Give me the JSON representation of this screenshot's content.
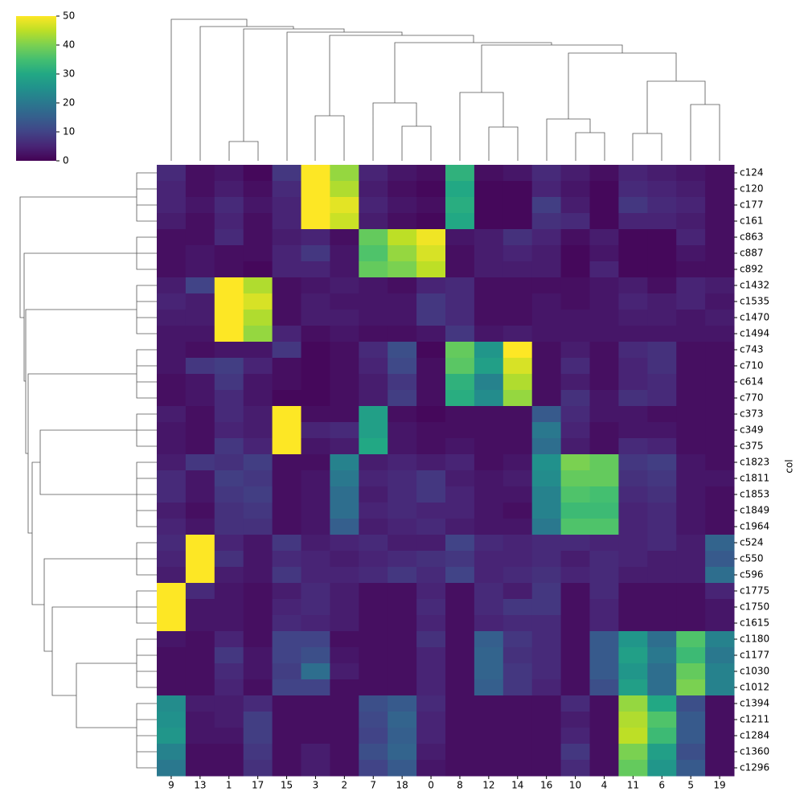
{
  "chart_data": {
    "type": "heatmap",
    "colormap": "viridis",
    "categories": [
      "9",
      "13",
      "1",
      "17",
      "15",
      "3",
      "2",
      "7",
      "18",
      "0",
      "8",
      "12",
      "14",
      "16",
      "10",
      "4",
      "11",
      "6",
      "5",
      "19"
    ],
    "y_categories": [
      "c124",
      "c120",
      "c177",
      "c161",
      "c863",
      "c887",
      "c892",
      "c1432",
      "c1535",
      "c1470",
      "c1494",
      "c743",
      "c710",
      "c614",
      "c770",
      "c373",
      "c349",
      "c375",
      "c1823",
      "c1811",
      "c1853",
      "c1849",
      "c1964",
      "c524",
      "c550",
      "c596",
      "c1775",
      "c1750",
      "c1615",
      "c1180",
      "c1177",
      "c1030",
      "c1012",
      "c1394",
      "c1211",
      "c1284",
      "c1360",
      "c1296"
    ],
    "ylabel": "col",
    "zlim": [
      0,
      50
    ],
    "colorbar_ticks": [
      0,
      10,
      20,
      30,
      40,
      50
    ],
    "values": [
      [
        6,
        2,
        3,
        1,
        8,
        50,
        42,
        5,
        3,
        2,
        32,
        2,
        3,
        6,
        4,
        2,
        5,
        4,
        3,
        2
      ],
      [
        5,
        2,
        4,
        2,
        6,
        50,
        44,
        4,
        2,
        1,
        30,
        1,
        1,
        5,
        3,
        1,
        6,
        5,
        4,
        2
      ],
      [
        5,
        3,
        6,
        3,
        5,
        50,
        48,
        5,
        3,
        2,
        31,
        1,
        1,
        9,
        4,
        1,
        8,
        6,
        5,
        2
      ],
      [
        4,
        2,
        5,
        2,
        5,
        50,
        46,
        4,
        2,
        1,
        30,
        1,
        1,
        7,
        6,
        1,
        5,
        5,
        4,
        2
      ],
      [
        2,
        2,
        6,
        2,
        4,
        5,
        2,
        38,
        45,
        49,
        3,
        4,
        7,
        5,
        2,
        4,
        1,
        1,
        5,
        2
      ],
      [
        2,
        3,
        2,
        2,
        5,
        8,
        3,
        36,
        42,
        47,
        2,
        4,
        5,
        4,
        1,
        3,
        1,
        1,
        3,
        2
      ],
      [
        2,
        3,
        2,
        1,
        5,
        5,
        3,
        38,
        40,
        45,
        2,
        4,
        4,
        4,
        1,
        5,
        1,
        1,
        2,
        2
      ],
      [
        4,
        10,
        50,
        44,
        2,
        3,
        4,
        3,
        2,
        5,
        6,
        2,
        2,
        2,
        2,
        3,
        4,
        2,
        5,
        4
      ],
      [
        5,
        4,
        50,
        47,
        2,
        4,
        3,
        3,
        3,
        8,
        6,
        2,
        2,
        3,
        2,
        3,
        5,
        4,
        5,
        3
      ],
      [
        4,
        4,
        50,
        44,
        2,
        4,
        4,
        3,
        3,
        8,
        6,
        2,
        2,
        3,
        3,
        3,
        4,
        4,
        3,
        4
      ],
      [
        3,
        3,
        50,
        42,
        5,
        2,
        3,
        2,
        2,
        3,
        8,
        3,
        4,
        3,
        3,
        3,
        3,
        3,
        3,
        3
      ],
      [
        3,
        2,
        3,
        3,
        8,
        1,
        2,
        6,
        12,
        1,
        38,
        26,
        50,
        2,
        4,
        2,
        6,
        7,
        2,
        2
      ],
      [
        3,
        8,
        9,
        5,
        2,
        1,
        2,
        5,
        11,
        2,
        37,
        28,
        47,
        2,
        6,
        2,
        5,
        7,
        2,
        2
      ],
      [
        2,
        3,
        8,
        3,
        2,
        1,
        2,
        4,
        8,
        2,
        32,
        22,
        44,
        2,
        4,
        2,
        5,
        6,
        2,
        2
      ],
      [
        2,
        3,
        6,
        3,
        1,
        1,
        2,
        4,
        9,
        2,
        31,
        24,
        42,
        2,
        7,
        3,
        7,
        6,
        2,
        2
      ],
      [
        4,
        2,
        6,
        4,
        50,
        2,
        2,
        28,
        2,
        1,
        2,
        2,
        2,
        14,
        6,
        3,
        3,
        2,
        2,
        2
      ],
      [
        3,
        2,
        5,
        4,
        50,
        5,
        6,
        28,
        3,
        2,
        2,
        2,
        2,
        20,
        5,
        2,
        3,
        3,
        2,
        2
      ],
      [
        3,
        2,
        8,
        5,
        50,
        3,
        4,
        30,
        3,
        2,
        3,
        2,
        2,
        18,
        4,
        2,
        6,
        5,
        2,
        2
      ],
      [
        4,
        8,
        7,
        9,
        2,
        2,
        22,
        4,
        5,
        4,
        5,
        2,
        3,
        25,
        40,
        38,
        8,
        9,
        3,
        2
      ],
      [
        6,
        3,
        9,
        8,
        2,
        3,
        20,
        5,
        6,
        8,
        4,
        3,
        4,
        24,
        38,
        38,
        7,
        8,
        3,
        3
      ],
      [
        6,
        3,
        8,
        9,
        2,
        3,
        18,
        4,
        6,
        8,
        5,
        3,
        3,
        22,
        36,
        35,
        6,
        7,
        3,
        2
      ],
      [
        4,
        2,
        7,
        8,
        2,
        3,
        18,
        5,
        6,
        5,
        5,
        3,
        2,
        22,
        34,
        34,
        5,
        6,
        3,
        2
      ],
      [
        5,
        3,
        7,
        7,
        2,
        3,
        15,
        4,
        5,
        6,
        4,
        3,
        3,
        20,
        36,
        36,
        5,
        6,
        3,
        2
      ],
      [
        6,
        50,
        5,
        3,
        8,
        4,
        5,
        6,
        4,
        4,
        10,
        6,
        5,
        6,
        6,
        5,
        5,
        6,
        4,
        16
      ],
      [
        5,
        50,
        7,
        3,
        6,
        5,
        4,
        5,
        6,
        7,
        8,
        5,
        5,
        6,
        4,
        6,
        5,
        4,
        4,
        14
      ],
      [
        4,
        50,
        4,
        3,
        8,
        5,
        5,
        6,
        8,
        6,
        10,
        5,
        6,
        7,
        5,
        6,
        4,
        4,
        4,
        18
      ],
      [
        50,
        6,
        3,
        2,
        4,
        6,
        4,
        2,
        2,
        5,
        2,
        6,
        4,
        8,
        2,
        6,
        2,
        2,
        2,
        5
      ],
      [
        50,
        3,
        3,
        2,
        5,
        6,
        4,
        2,
        2,
        6,
        2,
        6,
        8,
        8,
        2,
        5,
        2,
        2,
        2,
        3
      ],
      [
        50,
        3,
        3,
        2,
        6,
        5,
        4,
        2,
        2,
        5,
        2,
        5,
        6,
        6,
        2,
        5,
        2,
        2,
        2,
        3
      ],
      [
        3,
        2,
        5,
        2,
        10,
        10,
        2,
        2,
        2,
        7,
        2,
        15,
        8,
        6,
        2,
        14,
        26,
        18,
        36,
        22
      ],
      [
        2,
        2,
        8,
        3,
        10,
        12,
        3,
        2,
        2,
        5,
        2,
        16,
        7,
        6,
        2,
        14,
        28,
        20,
        34,
        20
      ],
      [
        2,
        2,
        6,
        3,
        9,
        18,
        4,
        2,
        2,
        5,
        2,
        16,
        8,
        6,
        2,
        14,
        26,
        18,
        38,
        22
      ],
      [
        2,
        2,
        5,
        2,
        10,
        10,
        2,
        2,
        2,
        5,
        2,
        15,
        8,
        5,
        2,
        12,
        28,
        18,
        40,
        22
      ],
      [
        24,
        4,
        4,
        6,
        2,
        2,
        2,
        12,
        14,
        6,
        2,
        2,
        2,
        2,
        6,
        2,
        42,
        30,
        12,
        2
      ],
      [
        25,
        3,
        4,
        9,
        2,
        2,
        2,
        11,
        16,
        5,
        2,
        2,
        2,
        2,
        4,
        2,
        44,
        36,
        14,
        2
      ],
      [
        26,
        3,
        3,
        9,
        2,
        2,
        2,
        10,
        15,
        5,
        2,
        2,
        2,
        2,
        5,
        2,
        45,
        34,
        14,
        2
      ],
      [
        22,
        2,
        2,
        8,
        2,
        4,
        2,
        12,
        16,
        4,
        2,
        2,
        2,
        2,
        8,
        2,
        40,
        28,
        12,
        2
      ],
      [
        20,
        2,
        2,
        7,
        2,
        4,
        2,
        10,
        14,
        3,
        2,
        2,
        2,
        2,
        6,
        2,
        38,
        26,
        14,
        2
      ]
    ]
  }
}
